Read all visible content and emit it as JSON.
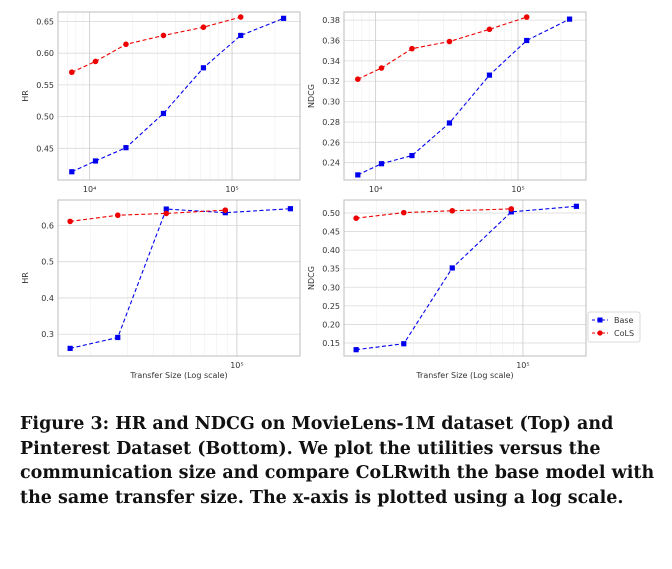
{
  "chart_data": [
    {
      "type": "line",
      "xscale": "log",
      "xlim": [
        6000,
        300000
      ],
      "ylim": [
        0.4,
        0.665
      ],
      "yticks": [
        "0.45",
        "0.50",
        "0.55",
        "0.60",
        "0.65"
      ],
      "xticks": [
        {
          "value": 10000,
          "label": "10⁴"
        },
        {
          "value": 100000,
          "label": "10⁵"
        }
      ],
      "ylabel": "HR",
      "xlabel": "",
      "grid": true,
      "series": [
        {
          "name": "Base",
          "color": "#0000ee",
          "marker": "square",
          "x": [
            7500,
            11000,
            18000,
            33000,
            63000,
            115000,
            230000
          ],
          "y": [
            0.413,
            0.43,
            0.451,
            0.505,
            0.577,
            0.628,
            0.655
          ]
        },
        {
          "name": "CoLS",
          "color": "#ee0000",
          "marker": "circle",
          "x": [
            7500,
            11000,
            18000,
            33000,
            63000,
            115000
          ],
          "y": [
            0.57,
            0.587,
            0.614,
            0.628,
            0.641,
            0.657
          ]
        }
      ]
    },
    {
      "type": "line",
      "xscale": "log",
      "xlim": [
        6000,
        300000
      ],
      "ylim": [
        0.223,
        0.388
      ],
      "yticks": [
        "0.24",
        "0.26",
        "0.28",
        "0.30",
        "0.32",
        "0.34",
        "0.36",
        "0.38"
      ],
      "xticks": [
        {
          "value": 10000,
          "label": "10⁴"
        },
        {
          "value": 100000,
          "label": "10⁵"
        }
      ],
      "ylabel": "NDCG",
      "xlabel": "",
      "grid": true,
      "series": [
        {
          "name": "Base",
          "color": "#0000ee",
          "marker": "square",
          "x": [
            7500,
            11000,
            18000,
            33000,
            63000,
            115000,
            230000
          ],
          "y": [
            0.228,
            0.239,
            0.247,
            0.279,
            0.326,
            0.36,
            0.381
          ]
        },
        {
          "name": "CoLS",
          "color": "#ee0000",
          "marker": "circle",
          "x": [
            7500,
            11000,
            18000,
            33000,
            63000,
            115000
          ],
          "y": [
            0.322,
            0.333,
            0.352,
            0.359,
            0.371,
            0.383
          ]
        }
      ]
    },
    {
      "type": "line",
      "xscale": "log",
      "xlim": [
        14000,
        200000
      ],
      "ylim": [
        0.24,
        0.67
      ],
      "yticks": [
        "0.3",
        "0.4",
        "0.5",
        "0.6"
      ],
      "xticks": [
        {
          "value": 100000,
          "label": "10⁵"
        }
      ],
      "ylabel": "HR",
      "xlabel": "Transfer Size (Log scale)",
      "grid": true,
      "series": [
        {
          "name": "Base",
          "color": "#0000ee",
          "marker": "square",
          "x": [
            16000,
            27000,
            46000,
            88000,
            180000
          ],
          "y": [
            0.261,
            0.291,
            0.645,
            0.635,
            0.646
          ]
        },
        {
          "name": "CoLS",
          "color": "#ee0000",
          "marker": "circle",
          "x": [
            16000,
            27000,
            46000,
            88000
          ],
          "y": [
            0.611,
            0.628,
            0.633,
            0.642
          ]
        }
      ]
    },
    {
      "type": "line",
      "xscale": "log",
      "xlim": [
        14000,
        200000
      ],
      "ylim": [
        0.115,
        0.535
      ],
      "yticks": [
        "0.15",
        "0.20",
        "0.25",
        "0.30",
        "0.35",
        "0.40",
        "0.45",
        "0.50"
      ],
      "xticks": [
        {
          "value": 100000,
          "label": "10⁵"
        }
      ],
      "ylabel": "NDCG",
      "xlabel": "Transfer Size (Log scale)",
      "grid": true,
      "legend": "right",
      "series": [
        {
          "name": "Base",
          "color": "#0000ee",
          "marker": "square",
          "x": [
            16000,
            27000,
            46000,
            88000,
            180000
          ],
          "y": [
            0.132,
            0.148,
            0.352,
            0.503,
            0.518
          ]
        },
        {
          "name": "CoLS",
          "color": "#ee0000",
          "marker": "circle",
          "x": [
            16000,
            27000,
            46000,
            88000
          ],
          "y": [
            0.486,
            0.501,
            0.506,
            0.511
          ]
        }
      ]
    }
  ],
  "legend": {
    "entries": [
      {
        "name": "Base",
        "color": "#0000ee",
        "marker": "square"
      },
      {
        "name": "CoLS",
        "color": "#ee0000",
        "marker": "circle"
      }
    ]
  },
  "caption": "Figure 3: HR and NDCG on MovieLens-1M dataset (Top) and Pinterest Dataset (Bottom). We plot the utilities versus the communication size and compare CoLRwith the base model with the same transfer size. The x-axis is plotted using a log scale."
}
